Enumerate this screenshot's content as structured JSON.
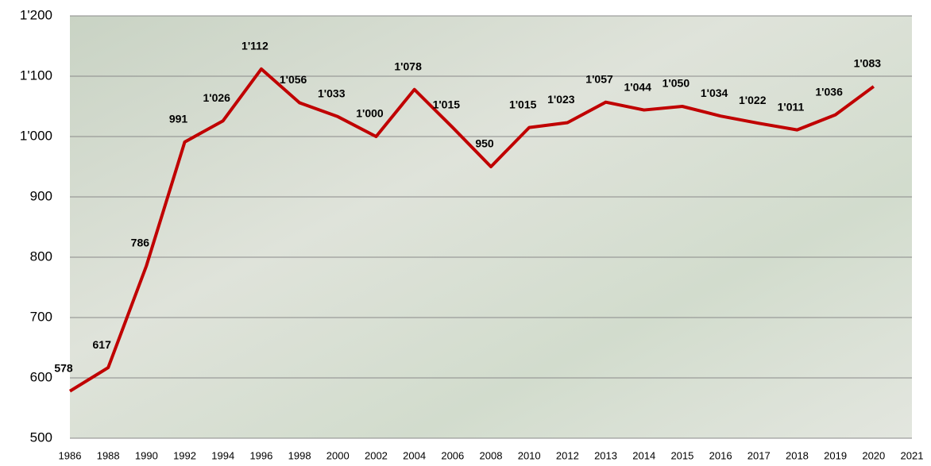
{
  "chart_data": {
    "type": "line",
    "categories": [
      "1986",
      "1988",
      "1990",
      "1992",
      "1994",
      "1996",
      "1998",
      "2000",
      "2002",
      "2004",
      "2006",
      "2008",
      "2010",
      "2012",
      "2013",
      "2014",
      "2015",
      "2016",
      "2017",
      "2018",
      "2019",
      "2020",
      "2021"
    ],
    "series": [
      {
        "color": "#c00000",
        "values": [
          578,
          617,
          786,
          991,
          1026,
          1112,
          1056,
          1033,
          1000,
          1078,
          1015,
          950,
          1015,
          1023,
          1057,
          1044,
          1050,
          1034,
          1022,
          1011,
          1036,
          1083,
          null
        ],
        "value_labels": [
          "578",
          "617",
          "786",
          "991",
          "1'026",
          "1'112",
          "1'056",
          "1'033",
          "1'000",
          "1'078",
          "1'015",
          "950",
          "1'015",
          "1'023",
          "1'057",
          "1'044",
          "1'050",
          "1'034",
          "1'022",
          "1'011",
          "1'036",
          "1'083",
          null
        ]
      }
    ],
    "ylim": [
      500,
      1200
    ],
    "yticks": [
      500,
      600,
      700,
      800,
      900,
      {
        "value": 1000,
        "label": "1'000"
      },
      {
        "value": 1100,
        "label": "1'100"
      },
      {
        "value": 1200,
        "label": "1'200"
      }
    ],
    "grid": true
  }
}
